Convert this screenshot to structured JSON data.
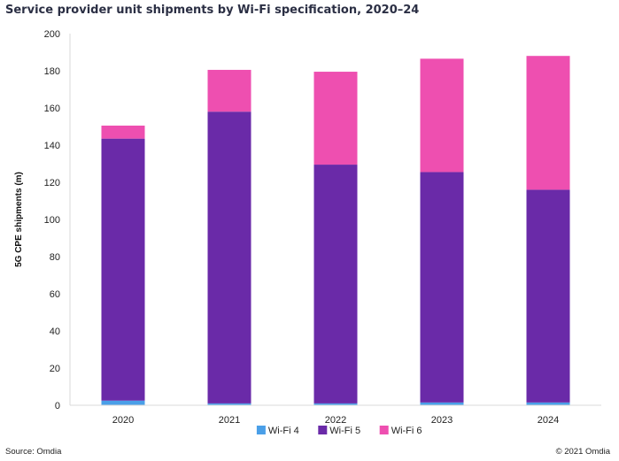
{
  "chart_data": {
    "type": "bar",
    "stacked": true,
    "title": "Service provider unit shipments by Wi-Fi specification, 2020–24",
    "ylabel": "5G CPE shipments  (m)",
    "xlabel": "",
    "ylim": [
      0,
      200
    ],
    "yticks": [
      0,
      20,
      40,
      60,
      80,
      100,
      120,
      140,
      160,
      180,
      200
    ],
    "grid": false,
    "legend_position": "bottom",
    "categories": [
      "2020",
      "2021",
      "2022",
      "2023",
      "2024"
    ],
    "series": [
      {
        "name": "Wi-Fi 4",
        "color": "#4a9fe8",
        "values": [
          2.5,
          1,
          1,
          1.5,
          1.5
        ]
      },
      {
        "name": "Wi-Fi 5",
        "color": "#6a2aa8",
        "values": [
          141,
          157,
          128.5,
          124,
          114.5
        ]
      },
      {
        "name": "Wi-Fi 6",
        "color": "#ee4fb0",
        "values": [
          7,
          22.5,
          50,
          61,
          72
        ]
      }
    ]
  },
  "footer": {
    "source": "Source: Omdia",
    "copyright": "© 2021 Omdia"
  }
}
